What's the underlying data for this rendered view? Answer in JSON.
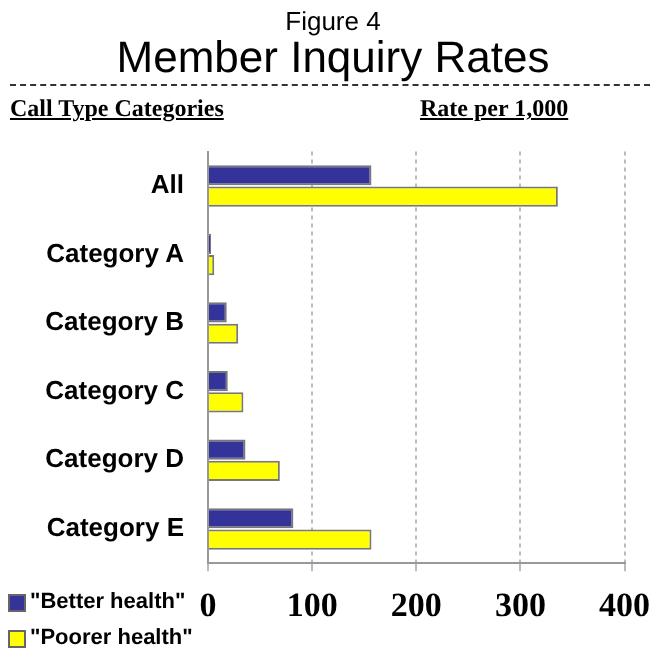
{
  "chart_data": {
    "type": "bar",
    "orientation": "horizontal",
    "subtitle": "Figure 4",
    "title": "Member Inquiry Rates",
    "ylabel": "Call Type Categories",
    "xlabel": "Rate per 1,000",
    "categories": [
      "All",
      "Category A",
      "Category B",
      "Category C",
      "Category D",
      "Category E"
    ],
    "series": [
      {
        "name": "\"Better health\"",
        "color": "#333399",
        "values": [
          157,
          3,
          18,
          19,
          36,
          82
        ]
      },
      {
        "name": "\"Poorer health\"",
        "color": "#ffff00",
        "values": [
          336,
          6,
          29,
          34,
          69,
          157
        ]
      }
    ],
    "xlim": [
      0,
      400
    ],
    "xticks": [
      0,
      100,
      200,
      300,
      400
    ],
    "grid": "x",
    "legend": "bottom left"
  }
}
